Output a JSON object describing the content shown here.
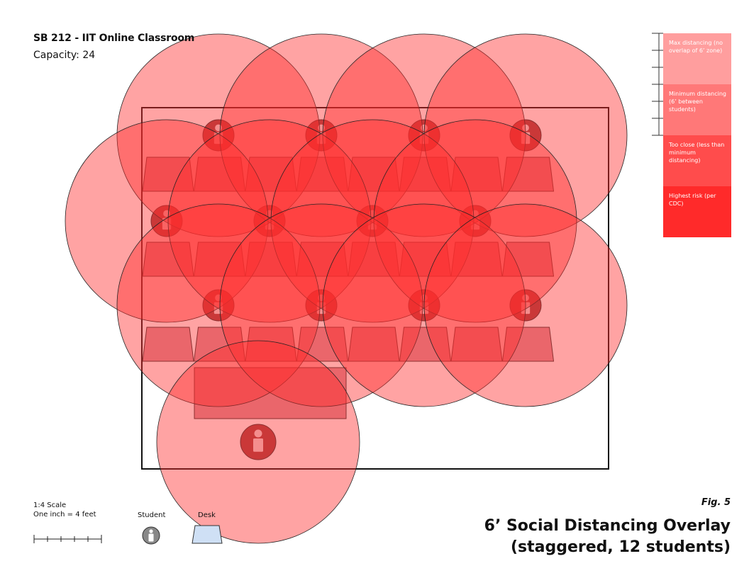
{
  "room": {
    "title": "SB 212 - IIT Online Classroom",
    "capacity": "Capacity: 24"
  },
  "legend": {
    "zones": [
      {
        "label": "Max distancing (no overlap of 6’ zone)",
        "color": "#ff9e9e"
      },
      {
        "label": "Minimum distancing (6’ between students)",
        "color": "#ff7878"
      },
      {
        "label": "Too close (less than minimum distancing)",
        "color": "#ff4c4c"
      },
      {
        "label": "Highest risk (per CDC)",
        "color": "#ff2a2a"
      }
    ]
  },
  "scale": {
    "ratio": "1:4 Scale",
    "note": "One inch = 4 feet"
  },
  "key": {
    "student": "Student",
    "desk": "Desk"
  },
  "figure": {
    "number": "Fig. 5",
    "title_line1": "6’ Social Distancing Overlay",
    "title_line2": "(staggered, 12 students)"
  },
  "colors": {
    "zone_fill": "#ff2d2d",
    "student_fill": "#a04040",
    "desk_key_fill": "#cfe0f5"
  },
  "students_per_row": [
    4,
    4,
    4
  ],
  "desks_per_row": 8
}
